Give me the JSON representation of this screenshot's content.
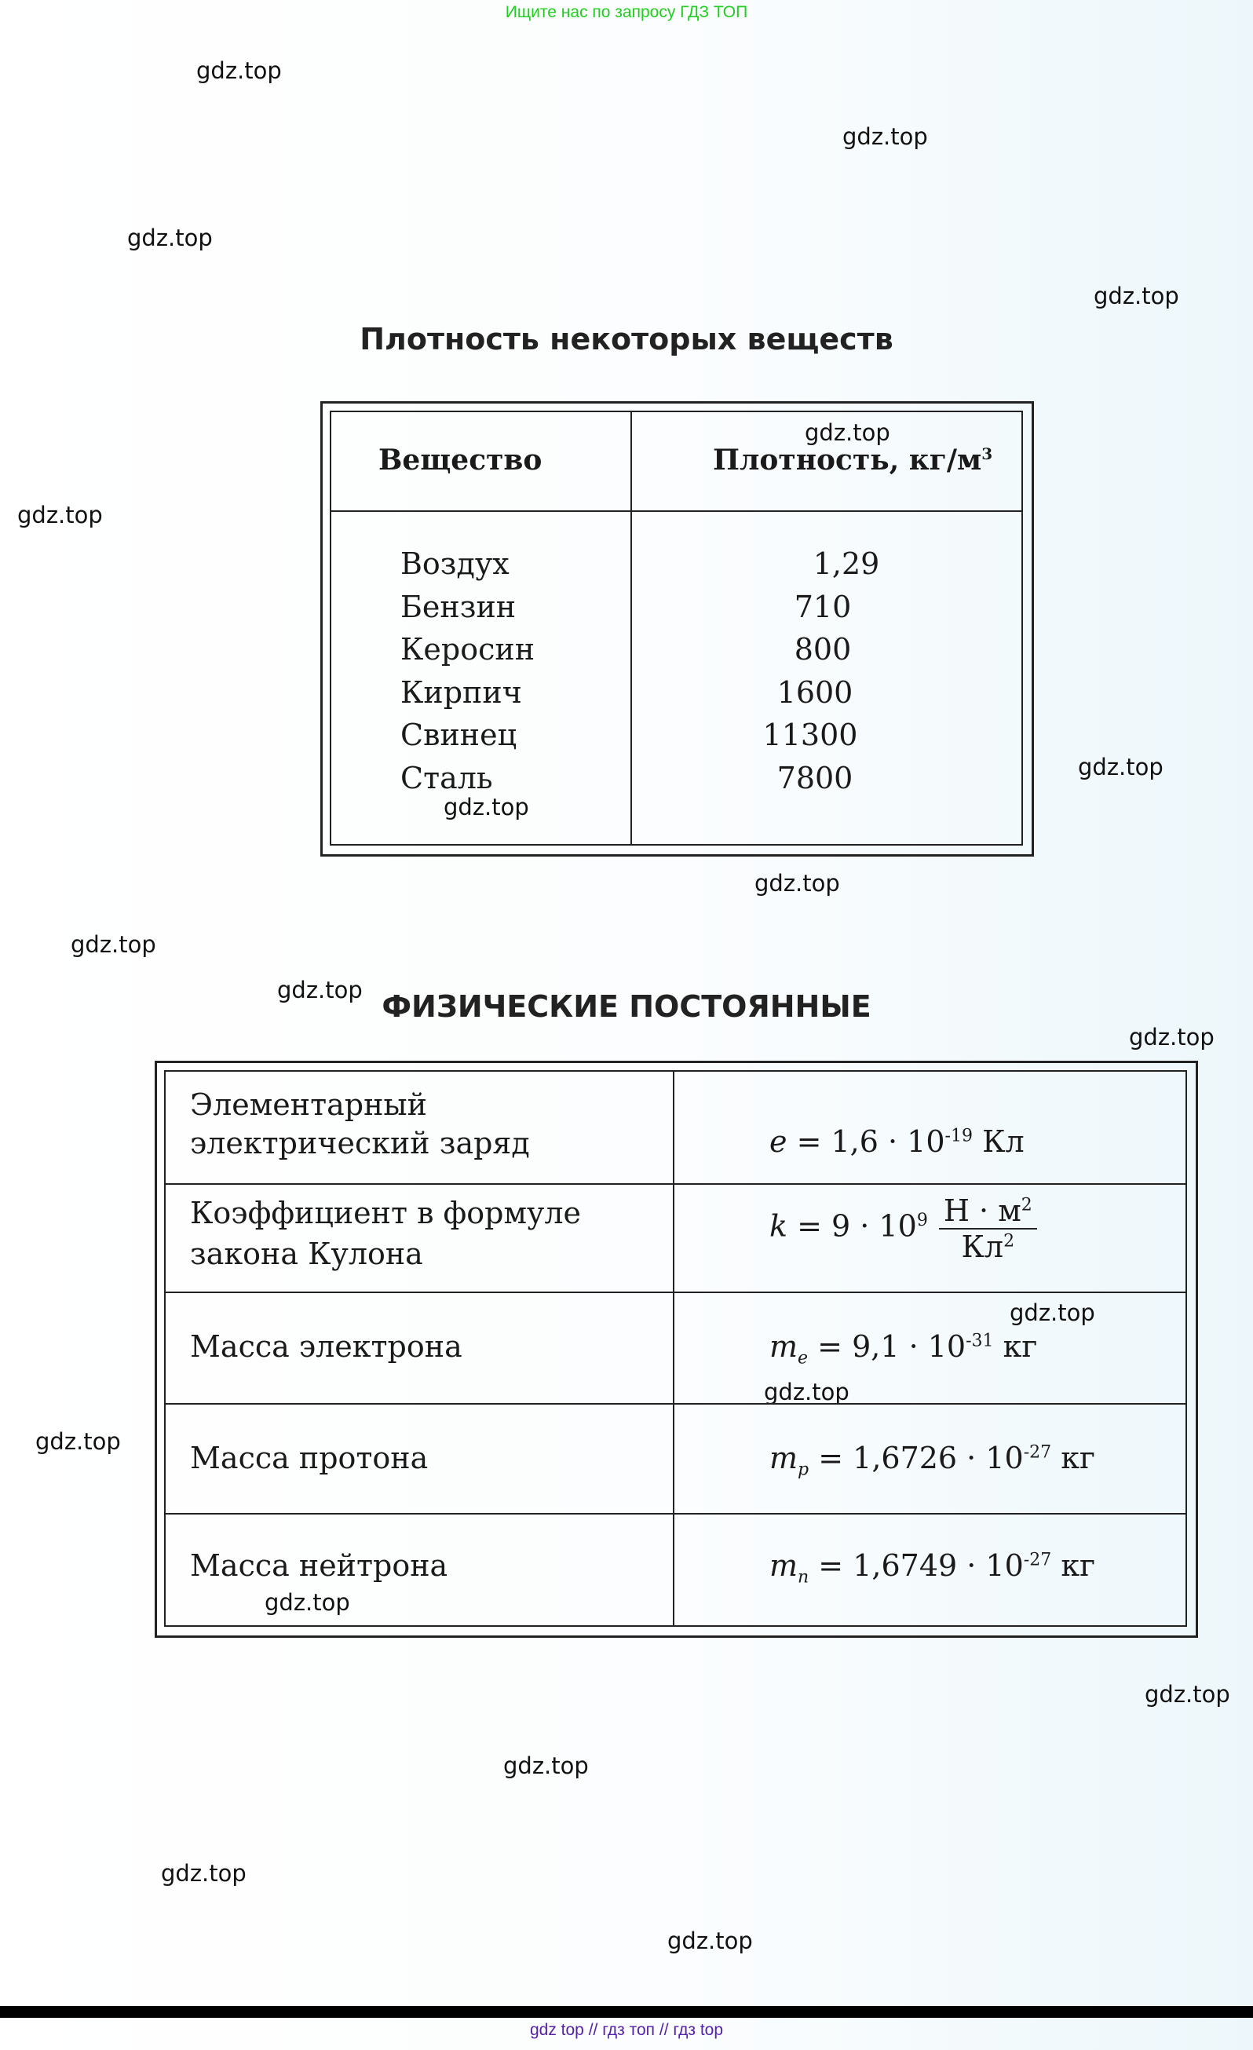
{
  "banner": "Ищите нас по запросу ГДЗ ТОП",
  "watermark": "gdz.top",
  "density_table": {
    "title": "Плотность некоторых веществ",
    "headers": [
      "Вещество",
      "Плотность, кг/м",
      "3"
    ],
    "rows": [
      {
        "substance": "Воздух",
        "density": "1,29"
      },
      {
        "substance": "Бензин",
        "density": "710"
      },
      {
        "substance": "Керосин",
        "density": "800"
      },
      {
        "substance": "Кирпич",
        "density": "1600"
      },
      {
        "substance": "Свинец",
        "density": "11300"
      },
      {
        "substance": "Сталь",
        "density": "7800"
      }
    ]
  },
  "constants_table": {
    "title": "ФИЗИЧЕСКИЕ ПОСТОЯННЫЕ",
    "rows": [
      {
        "label1": "Элементарный",
        "label2": "электрический заряд",
        "symbol": "e",
        "sub": "",
        "value": "1,6 · 10",
        "exp": "-19",
        "unit": "Кл"
      },
      {
        "label1": "Коэффициент в формуле",
        "label2": "закона Кулона",
        "symbol": "k",
        "sub": "",
        "value": "9 · 10",
        "exp": "9",
        "unit_num": "Н · м",
        "unit_num_exp": "2",
        "unit_den": "Кл",
        "unit_den_exp": "2"
      },
      {
        "label1": "Масса электрона",
        "label2": "",
        "symbol": "m",
        "sub": "e",
        "value": "9,1 · 10",
        "exp": "-31",
        "unit": "кг"
      },
      {
        "label1": "Масса протона",
        "label2": "",
        "symbol": "m",
        "sub": "p",
        "value": "1,6726 · 10",
        "exp": "-27",
        "unit": "кг"
      },
      {
        "label1": "Масса нейтрона",
        "label2": "",
        "symbol": "m",
        "sub": "n",
        "value": "1,6749 · 10",
        "exp": "-27",
        "unit": "кг"
      }
    ]
  },
  "footer": "gdz top  //  гдз топ  //  гдз top",
  "colors": {
    "banner": "#22cc22",
    "footer": "#5522aa"
  }
}
